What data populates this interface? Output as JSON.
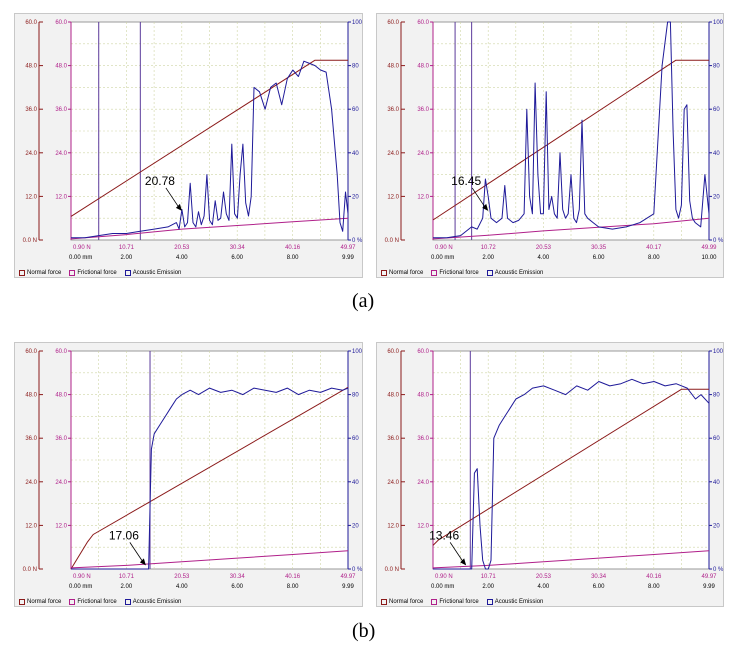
{
  "captions": [
    "(a)",
    "(b)"
  ],
  "legend_labels": [
    "Normal force",
    "Frictional force",
    "Acoustic Emission"
  ],
  "colors": {
    "normal": "#8b1a1a",
    "friction": "#b0208a",
    "ae": "#1f1a99",
    "grid": "#cfd6a6",
    "marker": "#5b3a9b"
  },
  "chart_data": [
    {
      "type": "line",
      "id": "a-left",
      "annotation": {
        "text": "20.78",
        "x": 4.0,
        "y": 8.0
      },
      "left_ticks": [
        "60.0",
        "48.0",
        "36.0",
        "24.0",
        "12.0",
        "0.0 N"
      ],
      "right_ticks": [
        "100",
        "80",
        "60",
        "40",
        "20",
        "0 %"
      ],
      "inner_left_ticks": [
        "60.0",
        "48.0",
        "36.0",
        "24.0",
        "12.0"
      ],
      "top_ticks": [
        "0.90 N",
        "10.71",
        "20.53",
        "30.34",
        "40.16",
        "49.97"
      ],
      "bottom_ticks": [
        "0.00 mm",
        "2.00",
        "4.00",
        "6.00",
        "8.00",
        "9.99"
      ],
      "xlim": [
        0,
        9.99
      ],
      "ylim": [
        0,
        60
      ],
      "y2lim": [
        0,
        100
      ],
      "markers_x": [
        1.0,
        2.5
      ],
      "series": [
        {
          "role": "normal",
          "x": [
            0,
            8.8,
            9.99
          ],
          "y": [
            6.5,
            49.5,
            49.5
          ]
        },
        {
          "role": "friction",
          "x": [
            0,
            2.0,
            4.0,
            6.0,
            8.0,
            9.99
          ],
          "y": [
            0.3,
            1.5,
            3.0,
            4.0,
            5.0,
            6.0
          ]
        },
        {
          "role": "ae",
          "x": [
            0,
            0.5,
            1.0,
            1.5,
            2.0,
            2.5,
            3.0,
            3.5,
            3.8,
            3.9,
            4.0,
            4.1,
            4.2,
            4.3,
            4.4,
            4.5,
            4.6,
            4.7,
            4.8,
            4.9,
            5.0,
            5.1,
            5.2,
            5.3,
            5.4,
            5.5,
            5.6,
            5.7,
            5.8,
            5.9,
            6.0,
            6.1,
            6.2,
            6.3,
            6.4,
            6.5,
            6.6,
            6.8,
            7.0,
            7.2,
            7.4,
            7.6,
            7.8,
            8.0,
            8.2,
            8.4,
            8.6,
            8.8,
            9.0,
            9.2,
            9.4,
            9.6,
            9.7,
            9.8,
            9.9,
            9.99
          ],
          "y": [
            1,
            1,
            2,
            3,
            3,
            4,
            5,
            6,
            8,
            5,
            14,
            6,
            8,
            26,
            8,
            6,
            13,
            7,
            11,
            30,
            9,
            7,
            18,
            9,
            10,
            22,
            12,
            9,
            44,
            12,
            10,
            30,
            44,
            17,
            11,
            20,
            70,
            68,
            60,
            70,
            72,
            62,
            74,
            78,
            75,
            82,
            81,
            80,
            78,
            77,
            60,
            30,
            8,
            4,
            22,
            12
          ]
        }
      ]
    },
    {
      "type": "line",
      "id": "a-right",
      "annotation": {
        "text": "16.45",
        "x": 2.0,
        "y": 8.0
      },
      "left_ticks": [
        "60.0",
        "48.0",
        "36.0",
        "24.0",
        "12.0",
        "0.0 N"
      ],
      "right_ticks": [
        "100",
        "80",
        "60",
        "40",
        "20",
        "0 %"
      ],
      "inner_left_ticks": [
        "60.0",
        "48.0",
        "36.0",
        "24.0",
        "12.0"
      ],
      "top_ticks": [
        "0.90 N",
        "10.72",
        "20.53",
        "30.35",
        "40.17",
        "49.99"
      ],
      "bottom_ticks": [
        "0.00 mm",
        "2.00",
        "4.00",
        "6.00",
        "8.00",
        "10.00"
      ],
      "xlim": [
        0,
        10
      ],
      "ylim": [
        0,
        60
      ],
      "y2lim": [
        0,
        100
      ],
      "markers_x": [
        0.8,
        1.4
      ],
      "series": [
        {
          "role": "normal",
          "x": [
            0,
            8.8,
            10
          ],
          "y": [
            5.5,
            49.5,
            49.5
          ]
        },
        {
          "role": "friction",
          "x": [
            0,
            2.0,
            4.0,
            6.0,
            8.0,
            10
          ],
          "y": [
            0.3,
            1.3,
            2.5,
            3.5,
            4.5,
            6.0
          ]
        },
        {
          "role": "ae",
          "x": [
            0,
            0.5,
            1.0,
            1.4,
            1.6,
            1.8,
            1.9,
            2.0,
            2.1,
            2.3,
            2.5,
            2.6,
            2.7,
            2.9,
            3.1,
            3.3,
            3.4,
            3.5,
            3.6,
            3.7,
            3.8,
            3.9,
            4.0,
            4.1,
            4.2,
            4.3,
            4.4,
            4.5,
            4.6,
            4.7,
            4.8,
            4.9,
            5.0,
            5.1,
            5.2,
            5.3,
            5.4,
            5.5,
            5.6,
            5.8,
            6.0,
            6.5,
            7.0,
            7.5,
            8.0,
            8.3,
            8.5,
            8.6,
            8.7,
            8.8,
            8.9,
            9.0,
            9.1,
            9.2,
            9.3,
            9.4,
            9.5,
            9.7,
            9.85,
            10
          ],
          "y": [
            1,
            1,
            2,
            6,
            5,
            10,
            28,
            20,
            10,
            8,
            10,
            25,
            10,
            8,
            9,
            12,
            60,
            20,
            12,
            72,
            30,
            12,
            12,
            68,
            14,
            20,
            12,
            10,
            40,
            14,
            10,
            12,
            30,
            10,
            8,
            14,
            55,
            12,
            10,
            8,
            6,
            5,
            6,
            8,
            12,
            80,
            100,
            100,
            50,
            14,
            10,
            16,
            60,
            62,
            18,
            10,
            8,
            6,
            30,
            12
          ]
        }
      ]
    },
    {
      "type": "line",
      "id": "b-left",
      "annotation": {
        "text": "17.06",
        "x": 2.7,
        "y": 1.0
      },
      "left_ticks": [
        "60.0",
        "48.0",
        "36.0",
        "24.0",
        "12.0",
        "0.0 N"
      ],
      "right_ticks": [
        "100",
        "80",
        "60",
        "40",
        "20",
        "0 %"
      ],
      "inner_left_ticks": [
        "60.0",
        "48.0",
        "36.0",
        "24.0",
        "12.0"
      ],
      "top_ticks": [
        "0.90 N",
        "10.71",
        "20.53",
        "30.34",
        "40.16",
        "49.97"
      ],
      "bottom_ticks": [
        "0.00 mm",
        "2.00",
        "4.00",
        "6.00",
        "8.00",
        "9.99"
      ],
      "xlim": [
        0,
        9.99
      ],
      "ylim": [
        0,
        60
      ],
      "y2lim": [
        0,
        100
      ],
      "markers_x": [
        2.85
      ],
      "series": [
        {
          "role": "normal",
          "x": [
            0,
            0.6,
            0.8,
            9.99
          ],
          "y": [
            0,
            7.5,
            9.5,
            50.0
          ]
        },
        {
          "role": "friction",
          "x": [
            0,
            2.0,
            4.0,
            6.0,
            8.0,
            9.99
          ],
          "y": [
            0.3,
            1.0,
            2.0,
            3.0,
            4.0,
            5.0
          ]
        },
        {
          "role": "ae",
          "x": [
            0,
            1.0,
            2.0,
            2.8,
            2.85,
            2.9,
            3.0,
            3.2,
            3.4,
            3.6,
            3.8,
            4.0,
            4.3,
            4.6,
            5.0,
            5.4,
            5.8,
            6.2,
            6.6,
            7.0,
            7.4,
            7.8,
            8.2,
            8.6,
            9.0,
            9.4,
            9.8,
            9.99
          ],
          "y": [
            0,
            0,
            0,
            0,
            28,
            55,
            62,
            66,
            70,
            74,
            78,
            80,
            82,
            80,
            83,
            81,
            82,
            80,
            83,
            82,
            81,
            83,
            80,
            82,
            81,
            83,
            82,
            83
          ]
        }
      ]
    },
    {
      "type": "line",
      "id": "b-right",
      "annotation": {
        "text": "13.46",
        "x": 1.2,
        "y": 1.0
      },
      "left_ticks": [
        "60.0",
        "48.0",
        "36.0",
        "24.0",
        "12.0",
        "0.0 N"
      ],
      "right_ticks": [
        "100",
        "80",
        "60",
        "40",
        "20",
        "0 %"
      ],
      "inner_left_ticks": [
        "60.0",
        "48.0",
        "36.0",
        "24.0",
        "12.0"
      ],
      "top_ticks": [
        "0.90 N",
        "10.71",
        "20.53",
        "30.34",
        "40.16",
        "49.97"
      ],
      "bottom_ticks": [
        "0.00 mm",
        "2.00",
        "4.00",
        "6.00",
        "8.00",
        "9.99"
      ],
      "xlim": [
        0,
        9.99
      ],
      "ylim": [
        0,
        60
      ],
      "y2lim": [
        0,
        100
      ],
      "markers_x": [
        1.35
      ],
      "series": [
        {
          "role": "normal",
          "x": [
            0,
            0.2,
            9.0,
            9.99
          ],
          "y": [
            6.5,
            8.0,
            49.5,
            49.5
          ]
        },
        {
          "role": "friction",
          "x": [
            0,
            2.0,
            4.0,
            6.0,
            8.0,
            9.99
          ],
          "y": [
            0.3,
            1.0,
            2.0,
            3.0,
            4.0,
            5.0
          ]
        },
        {
          "role": "ae",
          "x": [
            0,
            1.0,
            1.4,
            1.5,
            1.6,
            1.7,
            1.8,
            1.9,
            2.0,
            2.1,
            2.2,
            2.4,
            2.6,
            2.8,
            3.0,
            3.3,
            3.6,
            4.0,
            4.4,
            4.8,
            5.2,
            5.6,
            6.0,
            6.4,
            6.8,
            7.2,
            7.6,
            8.0,
            8.4,
            8.8,
            9.2,
            9.5,
            9.7,
            9.99
          ],
          "y": [
            0,
            0,
            0,
            44,
            46,
            20,
            4,
            0,
            0,
            4,
            60,
            66,
            70,
            74,
            78,
            80,
            83,
            84,
            82,
            80,
            84,
            82,
            86,
            84,
            85,
            87,
            85,
            86,
            84,
            85,
            83,
            78,
            80,
            76
          ]
        }
      ]
    }
  ]
}
